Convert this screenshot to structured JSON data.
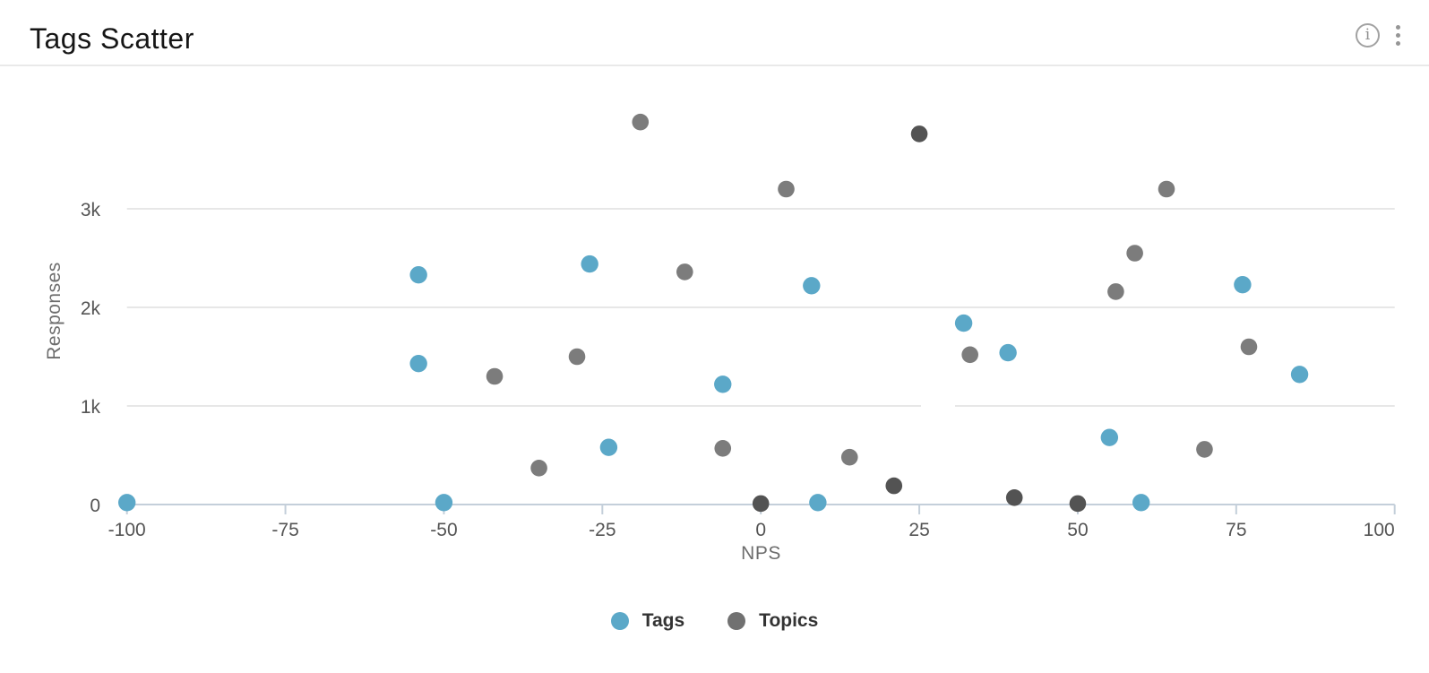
{
  "header": {
    "title": "Tags Scatter",
    "info_icon_glyph": "i"
  },
  "chart_data": {
    "type": "scatter",
    "title": "Tags Scatter",
    "xlabel": "NPS",
    "ylabel": "Responses",
    "xlim": [
      -100,
      100
    ],
    "ylim": [
      0,
      4200
    ],
    "x_tick_values": [
      -100,
      -75,
      -50,
      -25,
      0,
      25,
      50,
      75,
      100
    ],
    "x_tick_labels": [
      "-100",
      "-75",
      "-50",
      "-25",
      "0",
      "25",
      "50",
      "75",
      "100"
    ],
    "y_ticks": [
      {
        "value": 0,
        "label": "0"
      },
      {
        "value": 1000,
        "label": "1k"
      },
      {
        "value": 2000,
        "label": "2k"
      },
      {
        "value": 3000,
        "label": "3k"
      }
    ],
    "grid": "horizontal gridlines at 1k, 2k, 3k; light x-axis baseline with down ticks",
    "legend_position": "bottom-center",
    "series": [
      {
        "name": "Tags",
        "color": "#5BA8C8",
        "points": [
          [
            -100,
            20
          ],
          [
            -54,
            2330
          ],
          [
            -54,
            1430
          ],
          [
            -50,
            20
          ],
          [
            -27,
            2440
          ],
          [
            -24,
            580
          ],
          [
            -6,
            1220
          ],
          [
            8,
            2220
          ],
          [
            9,
            20
          ],
          [
            32,
            1840
          ],
          [
            39,
            1540
          ],
          [
            55,
            680
          ],
          [
            60,
            20
          ],
          [
            76,
            2230
          ],
          [
            85,
            1320
          ]
        ]
      },
      {
        "name": "Topics",
        "color": "#717171",
        "point_color": "#7C7C7C",
        "dark_point_color": "#535353",
        "dark_indices": [
          6,
          9,
          10,
          12,
          13
        ],
        "points": [
          [
            -42,
            1300
          ],
          [
            -35,
            370
          ],
          [
            -29,
            1500
          ],
          [
            -19,
            3880
          ],
          [
            -12,
            2360
          ],
          [
            -6,
            570
          ],
          [
            0,
            10
          ],
          [
            4,
            3200
          ],
          [
            14,
            480
          ],
          [
            21,
            190
          ],
          [
            25,
            3760
          ],
          [
            33,
            1520
          ],
          [
            40,
            70
          ],
          [
            50,
            10
          ],
          [
            56,
            2160
          ],
          [
            59,
            2550
          ],
          [
            64,
            3200
          ],
          [
            70,
            560
          ],
          [
            77,
            1600
          ]
        ]
      }
    ],
    "colors": {
      "axis_line": "#C4CFDA",
      "gridline": "#E7E7E7",
      "tick_label": "#545454",
      "axis_title": "#6D6D6D",
      "legend_text": "#333333"
    }
  }
}
